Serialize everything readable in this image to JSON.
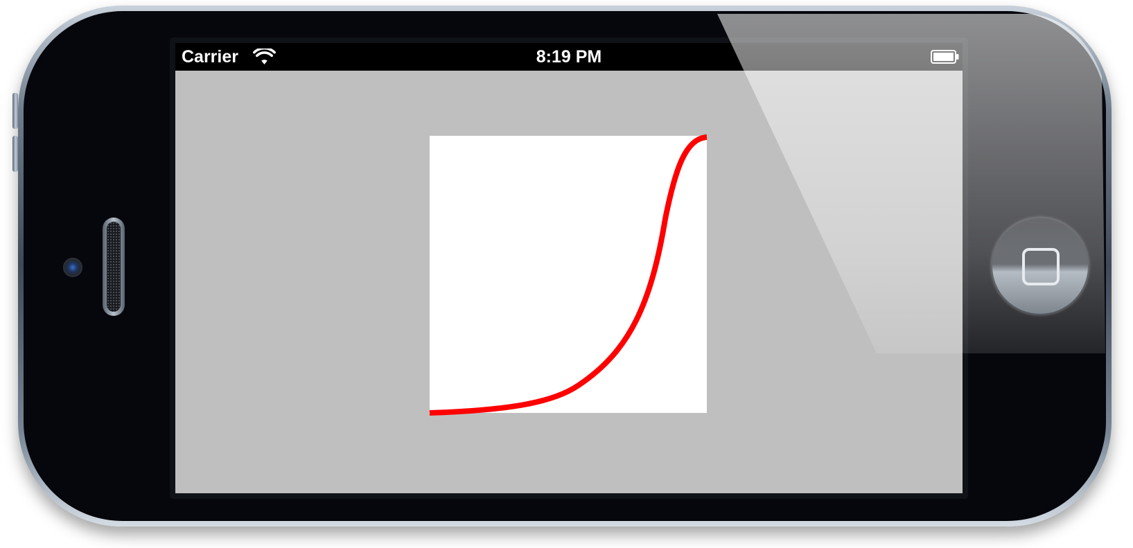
{
  "status_bar": {
    "carrier": "Carrier",
    "time": "8:19 PM",
    "wifi_icon": "wifi-icon",
    "battery_icon": "battery-icon"
  },
  "screen": {
    "background_color": "#bfbfbf",
    "plot_background_color": "#ffffff",
    "curve_color": "#ff0000"
  },
  "device": {
    "home_button_icon": "home-square-icon"
  }
}
